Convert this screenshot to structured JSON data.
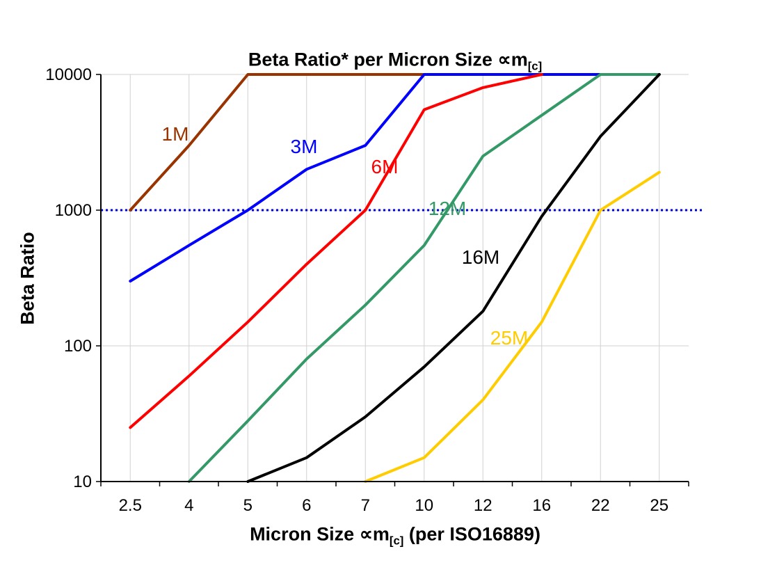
{
  "colors": {
    "background": "#FFFFFF",
    "grid": "#D0D0D0",
    "axis": "#000000",
    "text": "#000000"
  },
  "chart_data": {
    "type": "line",
    "title": "Beta Ratio* per Micron Size ∝m[c]",
    "title_parts": {
      "prefix": "Beta Ratio* per Micron Size ",
      "symbol": "∝m",
      "subscript": "[c]"
    },
    "xlabel": "Micron Size ∝m[c] (per ISO16889)",
    "xlabel_parts": {
      "prefix": "Micron Size ",
      "symbol": "∝m",
      "subscript": "[c]",
      "suffix": " (per ISO16889)"
    },
    "ylabel": "Beta Ratio",
    "y_scale": "log",
    "ylim": [
      10,
      10000
    ],
    "y_ticks": [
      "10",
      "100",
      "1000",
      "10000"
    ],
    "categories": [
      "2.5",
      "4",
      "5",
      "6",
      "7",
      "10",
      "12",
      "16",
      "22",
      "25"
    ],
    "grid": true,
    "legend_position": "inline-labels",
    "reference_line": {
      "value": 1000,
      "color": "#0000DD",
      "style": "dotted"
    },
    "series": [
      {
        "name": "1M",
        "color": "#993300",
        "values": [
          1000,
          3000,
          10000,
          10000,
          10000,
          10000,
          null,
          null,
          null,
          null
        ]
      },
      {
        "name": "3M",
        "color": "#0000FF",
        "values": [
          300,
          550,
          1000,
          2000,
          3000,
          10000,
          10000,
          10000,
          10000,
          10000
        ]
      },
      {
        "name": "6M",
        "color": "#FF0000",
        "values": [
          25,
          60,
          150,
          400,
          1000,
          5500,
          8000,
          10000,
          null,
          null
        ]
      },
      {
        "name": "12M",
        "color": "#339966",
        "values": [
          null,
          10,
          28,
          80,
          200,
          550,
          2500,
          5000,
          10000,
          10000
        ]
      },
      {
        "name": "16M",
        "color": "#000000",
        "values": [
          null,
          null,
          10,
          15,
          30,
          70,
          180,
          900,
          3500,
          10000
        ]
      },
      {
        "name": "25M",
        "color": "#FFCC00",
        "values": [
          null,
          null,
          null,
          null,
          10,
          15,
          40,
          150,
          1000,
          1900
        ]
      }
    ]
  }
}
